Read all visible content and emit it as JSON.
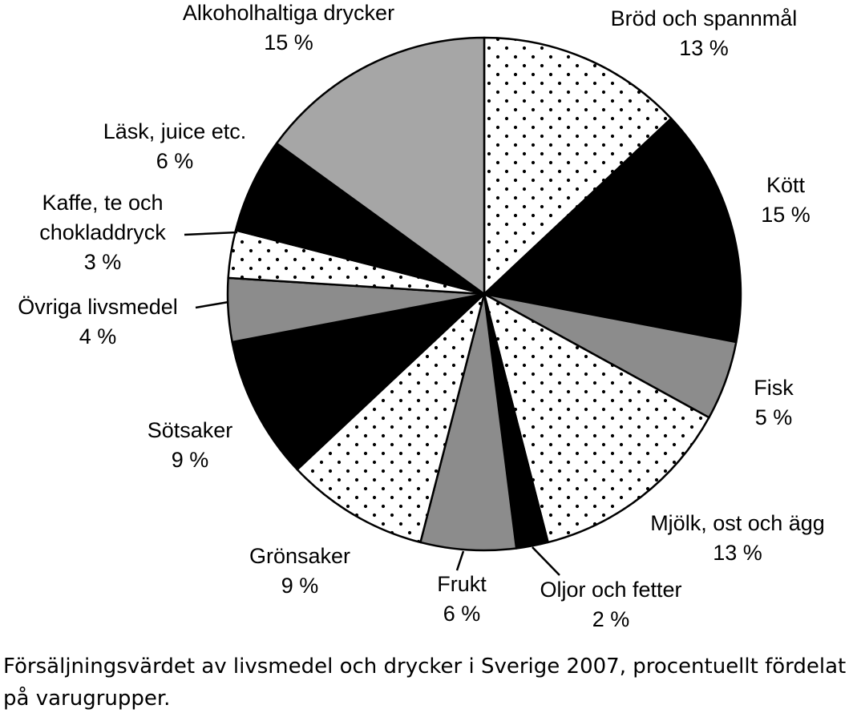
{
  "caption": "Försäljningsvärdet av livsmedel och drycker i Sverige 2007, procentuellt fördelat på varugrupper.",
  "chart_data": {
    "type": "pie",
    "title": "",
    "unit": "%",
    "slices": [
      {
        "label": [
          "Bröd och spannmål"
        ],
        "pct_text": "13 %",
        "value": 13,
        "fill": "dots"
      },
      {
        "label": [
          "Kött"
        ],
        "pct_text": "15 %",
        "value": 15,
        "fill": "black"
      },
      {
        "label": [
          "Fisk"
        ],
        "pct_text": "5 %",
        "value": 5,
        "fill": "gray"
      },
      {
        "label": [
          "Mjölk, ost och ägg"
        ],
        "pct_text": "13 %",
        "value": 13,
        "fill": "dots"
      },
      {
        "label": [
          "Oljor och fetter"
        ],
        "pct_text": "2 %",
        "value": 2,
        "fill": "black"
      },
      {
        "label": [
          "Frukt"
        ],
        "pct_text": "6 %",
        "value": 6,
        "fill": "gray"
      },
      {
        "label": [
          "Grönsaker"
        ],
        "pct_text": "9 %",
        "value": 9,
        "fill": "dots"
      },
      {
        "label": [
          "Sötsaker"
        ],
        "pct_text": "9 %",
        "value": 9,
        "fill": "black"
      },
      {
        "label": [
          "Övriga livsmedel"
        ],
        "pct_text": "4 %",
        "value": 4,
        "fill": "gray"
      },
      {
        "label": [
          "Kaffe, te och",
          "chokladdryck"
        ],
        "pct_text": "3 %",
        "value": 3,
        "fill": "dots"
      },
      {
        "label": [
          "Läsk, juice etc."
        ],
        "pct_text": "6 %",
        "value": 6,
        "fill": "black"
      },
      {
        "label": [
          "Alkoholhaltiga drycker"
        ],
        "pct_text": "15 %",
        "value": 15,
        "fill": "lightgray"
      }
    ],
    "colors": {
      "black": "#000000",
      "gray": "#8c8c8c",
      "lightgray": "#a6a6a6",
      "dots": "#ffffff",
      "stroke": "#000000"
    }
  }
}
